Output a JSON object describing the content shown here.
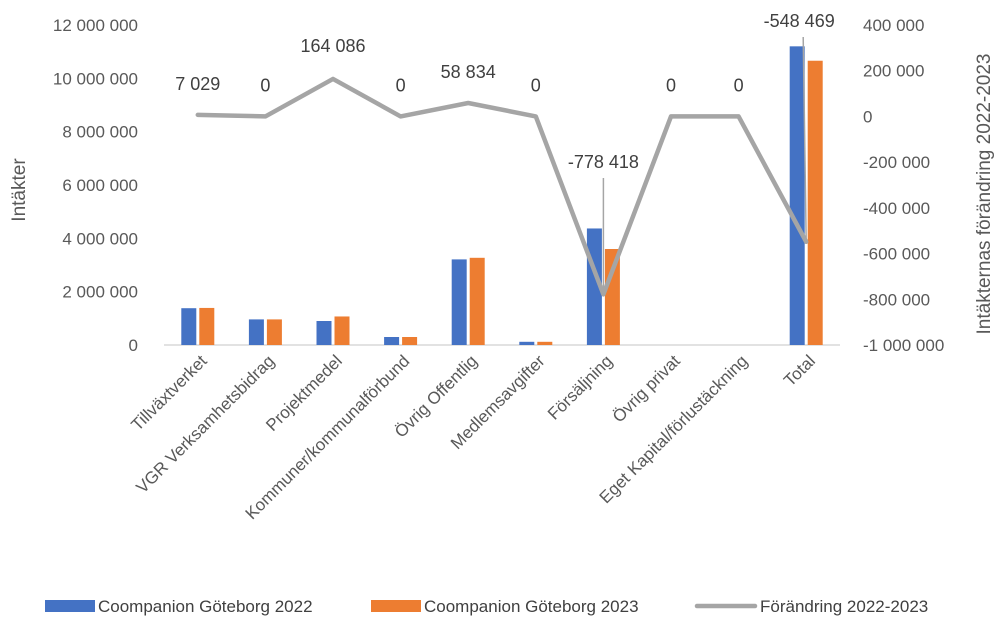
{
  "chart_data": {
    "type": "bar",
    "categories": [
      "Tillväxtverket",
      "VGR Verksamhetsbidrag",
      "Projektmedel",
      "Kommuner/kommunalförbund",
      "Övrig Offentlig",
      "Medlemsavgifter",
      "Försäljning",
      "Övrig privat",
      "Eget Kapital/förlustäckning",
      "Total"
    ],
    "series": [
      {
        "name": "Coompanion Göteborg 2022",
        "type": "bar",
        "axis": "left",
        "color": "#4472C4",
        "values": [
          1380000,
          960000,
          900000,
          300000,
          3210000,
          120000,
          4370000,
          0,
          0,
          11200000
        ]
      },
      {
        "name": "Coompanion Göteborg 2023",
        "type": "bar",
        "axis": "left",
        "color": "#ED7D31",
        "values": [
          1390000,
          960000,
          1070000,
          300000,
          3270000,
          120000,
          3600000,
          0,
          0,
          10660000
        ]
      },
      {
        "name": "Förändring 2022-2023",
        "type": "line",
        "axis": "right",
        "color": "#A5A5A5",
        "values": [
          7029,
          0,
          164086,
          0,
          58834,
          0,
          -778418,
          0,
          0,
          -548469
        ]
      }
    ],
    "data_labels": [
      "7 029",
      "0",
      "164 086",
      "0",
      "58 834",
      "0",
      "-778 418",
      "0",
      "0",
      "-548 469"
    ],
    "ylabel": "Intäkter",
    "y2label": "Intäkternas förändring 2022-2023",
    "ylim": [
      0,
      12000000
    ],
    "y2lim": [
      -1000000,
      400000
    ],
    "yticks": [
      "0",
      "2 000 000",
      "4 000 000",
      "6 000 000",
      "8 000 000",
      "10 000 000",
      "12 000 000"
    ],
    "y2ticks": [
      "-1 000 000",
      "-800 000",
      "-600 000",
      "-400 000",
      "-200 000",
      "0",
      "200 000",
      "400 000"
    ],
    "grid": false,
    "legend_position": "bottom"
  }
}
